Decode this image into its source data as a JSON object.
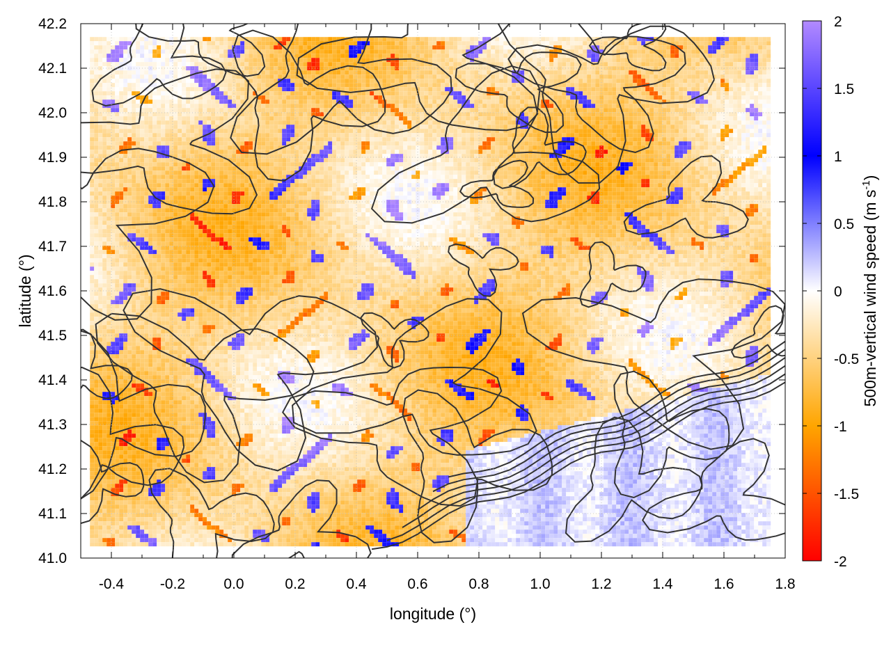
{
  "chart_data": {
    "type": "heatmap",
    "title": "",
    "xlabel": "longitude (°)",
    "ylabel": "latitude (°)",
    "colorbar_label": "500m-vertical wind speed (m s",
    "colorbar_label_sup": "-1",
    "colorbar_label_close": ")",
    "xlim": [
      -0.5,
      1.8
    ],
    "ylim": [
      41.0,
      42.2
    ],
    "clim": [
      -2,
      2
    ],
    "x_ticks": [
      "-0.4",
      "-0.2",
      "0.0",
      "0.2",
      "0.4",
      "0.6",
      "0.8",
      "1.0",
      "1.2",
      "1.4",
      "1.6",
      "1.8"
    ],
    "x_tick_values": [
      -0.4,
      -0.2,
      0.0,
      0.2,
      0.4,
      0.6,
      0.8,
      1.0,
      1.2,
      1.4,
      1.6,
      1.8
    ],
    "y_ticks": [
      "41.0",
      "41.1",
      "41.2",
      "41.3",
      "41.4",
      "41.5",
      "41.6",
      "41.7",
      "41.8",
      "41.9",
      "42.0",
      "42.1",
      "42.2"
    ],
    "y_tick_values": [
      41.0,
      41.1,
      41.2,
      41.3,
      41.4,
      41.5,
      41.6,
      41.7,
      41.8,
      41.9,
      42.0,
      42.1,
      42.2
    ],
    "colorbar_ticks": [
      "-2",
      "-1.5",
      "-1",
      "-0.5",
      "0",
      "0.5",
      "1",
      "1.5",
      "2"
    ],
    "colorbar_tick_values": [
      -2,
      -1.5,
      -1,
      -0.5,
      0,
      0.5,
      1,
      1.5,
      2
    ],
    "colormap": [
      {
        "value": -2,
        "color": "#ff0000"
      },
      {
        "value": -1,
        "color": "#ffa500"
      },
      {
        "value": 0,
        "color": "#ffffff"
      },
      {
        "value": 1,
        "color": "#0000ff"
      },
      {
        "value": 2,
        "color": "#b28aff"
      }
    ],
    "data_extent": {
      "x": [
        -0.47,
        1.75
      ],
      "y": [
        41.03,
        42.17
      ]
    },
    "grid": true,
    "contour_color": "#333333",
    "note_contours": "terrain elevation contour lines overlaid (unlabeled)"
  }
}
